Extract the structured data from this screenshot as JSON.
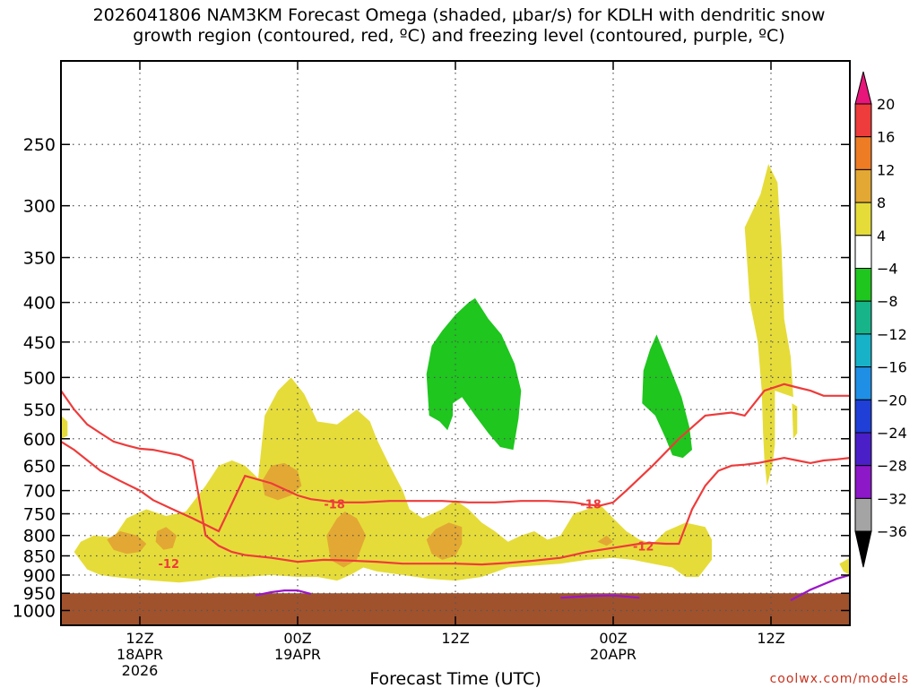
{
  "title": {
    "line1": "2026041806 NAM3KM Forecast Omega (shaded, μbar/s) for KDLH with dendritic snow",
    "line2": "growth region (contoured, red, ºC) and freezing level (contoured, purple, ºC)"
  },
  "credit": "coolwx.com/models",
  "chart_data": {
    "type": "area",
    "xlabel": "Forecast Time (UTC)",
    "ylabel": "",
    "y_scale": "log-pressure (hPa), reversed",
    "ylim_hpa": [
      1045,
      195
    ],
    "xlim_hours": [
      6,
      66
    ],
    "grid": true,
    "y_ticks": [
      250,
      300,
      350,
      400,
      450,
      500,
      550,
      600,
      650,
      700,
      750,
      800,
      850,
      900,
      950,
      1000
    ],
    "x_ticks": [
      {
        "hour": 12,
        "line1": "12Z",
        "line2": "18APR",
        "line3": "2026"
      },
      {
        "hour": 24,
        "line1": "00Z",
        "line2": "19APR",
        "line3": ""
      },
      {
        "hour": 36,
        "line1": "12Z",
        "line2": "",
        "line3": ""
      },
      {
        "hour": 48,
        "line1": "00Z",
        "line2": "20APR",
        "line3": ""
      },
      {
        "hour": 60,
        "line1": "12Z",
        "line2": "",
        "line3": ""
      }
    ],
    "colorbar": {
      "levels": [
        "20",
        "16",
        "12",
        "8",
        "4",
        "−4",
        "−8",
        "−12",
        "−16",
        "−20",
        "−24",
        "−28",
        "−32",
        "−36"
      ],
      "colors": [
        "#e8157a",
        "#ee3b3b",
        "#ee7c25",
        "#e3a833",
        "#e5dc3a",
        "#ffffff",
        "#1ec61e",
        "#17b48a",
        "#18b2c8",
        "#1f8fe6",
        "#1f3fd6",
        "#4a1fc8",
        "#8c18c8",
        "#a4a4a4",
        "#000000"
      ]
    },
    "contour_labels": [
      {
        "label": "-18",
        "hour": 26.8,
        "hpa": 728
      },
      {
        "label": "-18",
        "hour": 46.3,
        "hpa": 728
      },
      {
        "label": "-12",
        "hour": 14.2,
        "hpa": 870
      },
      {
        "label": "-12",
        "hour": 50.3,
        "hpa": 825
      }
    ],
    "isotherm_minus18_upper": {
      "name": "",
      "hours": [
        6,
        7,
        9,
        10.5,
        12,
        13,
        14.5,
        16,
        18,
        20,
        22,
        24,
        25,
        27,
        29,
        31,
        33,
        35,
        37,
        39,
        41,
        43,
        45,
        46,
        47,
        48,
        49,
        51,
        53,
        55,
        57,
        58,
        59.5,
        61,
        62,
        63,
        64,
        65,
        66
      ],
      "hpa": [
        605,
        620,
        660,
        680,
        700,
        720,
        740,
        760,
        790,
        670,
        685,
        710,
        718,
        725,
        725,
        722,
        722,
        722,
        725,
        725,
        722,
        722,
        725,
        730,
        732,
        725,
        700,
        650,
        600,
        560,
        555,
        560,
        520,
        510,
        515,
        520,
        528,
        528,
        528
      ]
    },
    "isotherm_minus12_lower": {
      "name": "",
      "hours": [
        6,
        7,
        8,
        9,
        10,
        11,
        12,
        13,
        14,
        15,
        16,
        17,
        18,
        19,
        20,
        22,
        24,
        26,
        28,
        30,
        32,
        34,
        36,
        38,
        40,
        42,
        44,
        46,
        48,
        50,
        51,
        52,
        53,
        54,
        55,
        56,
        57,
        58,
        59,
        60,
        61,
        62,
        63,
        64,
        65,
        66
      ],
      "hpa": [
        520,
        550,
        575,
        590,
        605,
        612,
        618,
        620,
        625,
        630,
        640,
        800,
        825,
        840,
        848,
        855,
        865,
        860,
        862,
        865,
        870,
        870,
        870,
        872,
        868,
        862,
        855,
        840,
        830,
        820,
        818,
        820,
        820,
        740,
        690,
        660,
        650,
        648,
        645,
        640,
        635,
        640,
        645,
        640,
        638,
        635
      ]
    },
    "freezing_level_segments": [
      {
        "name": "",
        "hours": [
          20.8,
          22,
          23,
          24,
          25
        ],
        "hpa": [
          956,
          947,
          942,
          942,
          952
        ]
      },
      {
        "name": "",
        "hours": [
          44,
          46,
          48,
          50
        ],
        "hpa": [
          963,
          958,
          956,
          963
        ]
      },
      {
        "name": "",
        "hours": [
          61.5,
          63,
          65,
          66
        ],
        "hpa": [
          970,
          940,
          910,
          900
        ]
      }
    ],
    "surface_pressure_hpa": 950,
    "shading_regions": [
      {
        "name": "",
        "value": "4 to 8 μbar/s"
      },
      {
        "name": "",
        "value": "8 to 12 μbar/s"
      },
      {
        "name": "",
        "value": "−4 to −8 μbar/s"
      }
    ]
  }
}
